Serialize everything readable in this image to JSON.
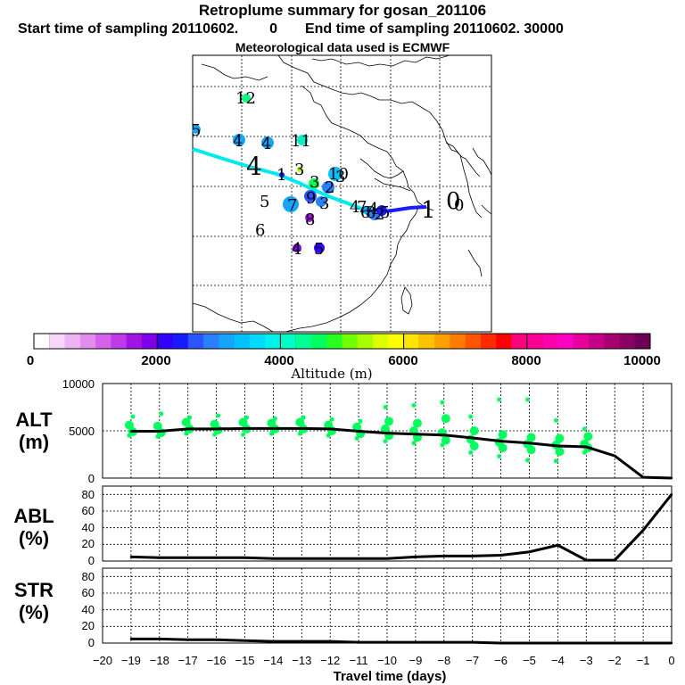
{
  "header": {
    "title": "Retroplume summary for gosan_201106",
    "start_label": "Start time of sampling 20110602.",
    "start_hour": "0",
    "end_label": "End time of sampling 20110602. 30000",
    "met_label": "Meteorological data used is ECMWF"
  },
  "colorbar": {
    "label": "Altitude (m)",
    "ticks": [
      "0",
      "2000",
      "4000",
      "6000",
      "8000",
      "10000"
    ],
    "colors": [
      "#ffffff",
      "#f7d6f9",
      "#eeb3f5",
      "#e28cf0",
      "#d262ec",
      "#bf3ae8",
      "#a313e3",
      "#7f00e8",
      "#3300ff",
      "#1a1aff",
      "#2b55ff",
      "#2a80ff",
      "#16a4ff",
      "#00c2ff",
      "#00dbff",
      "#00f0ea",
      "#00ffc4",
      "#00ff94",
      "#00ff5e",
      "#27ff22",
      "#70ff00",
      "#a8ff00",
      "#dfff00",
      "#ffff00",
      "#ffe600",
      "#ffc200",
      "#ff9f00",
      "#ff7c00",
      "#ff5500",
      "#ff2a00",
      "#ff0000",
      "#ff007f",
      "#ff0097",
      "#ff00ab",
      "#ff00c4",
      "#e8009f",
      "#c80087",
      "#a8006f",
      "#8b0065",
      "#6b0055"
    ]
  },
  "map": {
    "track_numbers": [
      {
        "label": "0",
        "color": "#000"
      },
      {
        "label": "1",
        "color": "#000"
      },
      {
        "label": "2",
        "color": "#000"
      },
      {
        "label": "3",
        "color": "#000"
      },
      {
        "label": "4",
        "color": "#000"
      },
      {
        "label": "5",
        "color": "#000"
      },
      {
        "label": "6",
        "color": "#000"
      },
      {
        "label": "7",
        "color": "#000"
      },
      {
        "label": "8",
        "color": "#000"
      },
      {
        "label": "9",
        "color": "#000"
      },
      {
        "label": "10",
        "color": "#000"
      },
      {
        "label": "11",
        "color": "#000"
      },
      {
        "label": "12",
        "color": "#000"
      },
      {
        "label": "4",
        "color": "#000"
      },
      {
        "label": "5",
        "color": "#000"
      },
      {
        "label": "4",
        "color": "#000"
      },
      {
        "label": "5",
        "color": "#000"
      },
      {
        "label": "4",
        "color": "#000"
      },
      {
        "label": "1",
        "color": "#000"
      },
      {
        "label": "4",
        "color": "#000"
      },
      {
        "label": "3",
        "color": "#000"
      },
      {
        "label": "3",
        "color": "#000"
      },
      {
        "label": "2",
        "color": "#000"
      },
      {
        "label": "3",
        "color": "#000"
      },
      {
        "label": "8",
        "color": "#000"
      },
      {
        "label": "6",
        "color": "#000"
      },
      {
        "label": "4",
        "color": "#000"
      },
      {
        "label": "5",
        "color": "#000"
      },
      {
        "label": "7",
        "color": "#000"
      },
      {
        "label": "0",
        "color": "#000"
      }
    ]
  },
  "panels": {
    "alt": {
      "label1": "ALT",
      "label2": "(m)",
      "ticks": [
        "10000",
        "5000",
        "0"
      ]
    },
    "abl": {
      "label1": "ABL",
      "label2": "(%)",
      "ticks": [
        "80",
        "60",
        "40",
        "20",
        "0"
      ]
    },
    "str": {
      "label1": "STR",
      "label2": "(%)",
      "ticks": [
        "80",
        "60",
        "40",
        "20",
        "0"
      ]
    }
  },
  "chart_data": [
    {
      "type": "line",
      "title": "ALT (m)",
      "x": [
        -20,
        -19,
        -18,
        -17,
        -16,
        -15,
        -14,
        -13,
        -12,
        -11,
        -10,
        -9,
        -8,
        -7,
        -6,
        -5,
        -4,
        -3,
        -2,
        -1,
        0
      ],
      "values": [
        null,
        4950,
        4950,
        5200,
        5200,
        5250,
        5250,
        5250,
        5200,
        4950,
        4750,
        4650,
        4550,
        4250,
        3900,
        3700,
        3400,
        3300,
        2350,
        80,
        0
      ],
      "ylim": [
        0,
        10000
      ],
      "ylabel": "ALT (m)"
    },
    {
      "type": "line",
      "title": "ABL (%)",
      "x": [
        -20,
        -19,
        -18,
        -17,
        -16,
        -15,
        -14,
        -13,
        -12,
        -11,
        -10,
        -9,
        -8,
        -7,
        -6,
        -5,
        -4,
        -3,
        -2,
        -1,
        0
      ],
      "values": [
        null,
        5,
        4,
        4,
        4,
        4,
        3,
        3,
        3,
        3,
        3,
        5,
        6,
        6,
        7,
        11,
        19,
        1,
        1,
        37,
        80
      ],
      "ylim": [
        0,
        90
      ],
      "ylabel": "ABL (%)"
    },
    {
      "type": "line",
      "title": "STR (%)",
      "x": [
        -20,
        -19,
        -18,
        -17,
        -16,
        -15,
        -14,
        -13,
        -12,
        -11,
        -10,
        -9,
        -8,
        -7,
        -6,
        -5,
        -4,
        -3,
        -2,
        -1,
        0
      ],
      "values": [
        null,
        5,
        5,
        4,
        4,
        3,
        2,
        2,
        2,
        1,
        1,
        1,
        1,
        1,
        0,
        0,
        0,
        0,
        0,
        0,
        0
      ],
      "ylim": [
        0,
        90
      ],
      "ylabel": "STR (%)"
    }
  ],
  "xaxis": {
    "label": "Travel time (days)",
    "ticks": [
      "−20",
      "−19",
      "−18",
      "−17",
      "−16",
      "−15",
      "−14",
      "−13",
      "−12",
      "−11",
      "−10",
      "−9",
      "−8",
      "−7",
      "−6",
      "−5",
      "−4",
      "−3",
      "−2",
      "−1",
      "0"
    ]
  }
}
